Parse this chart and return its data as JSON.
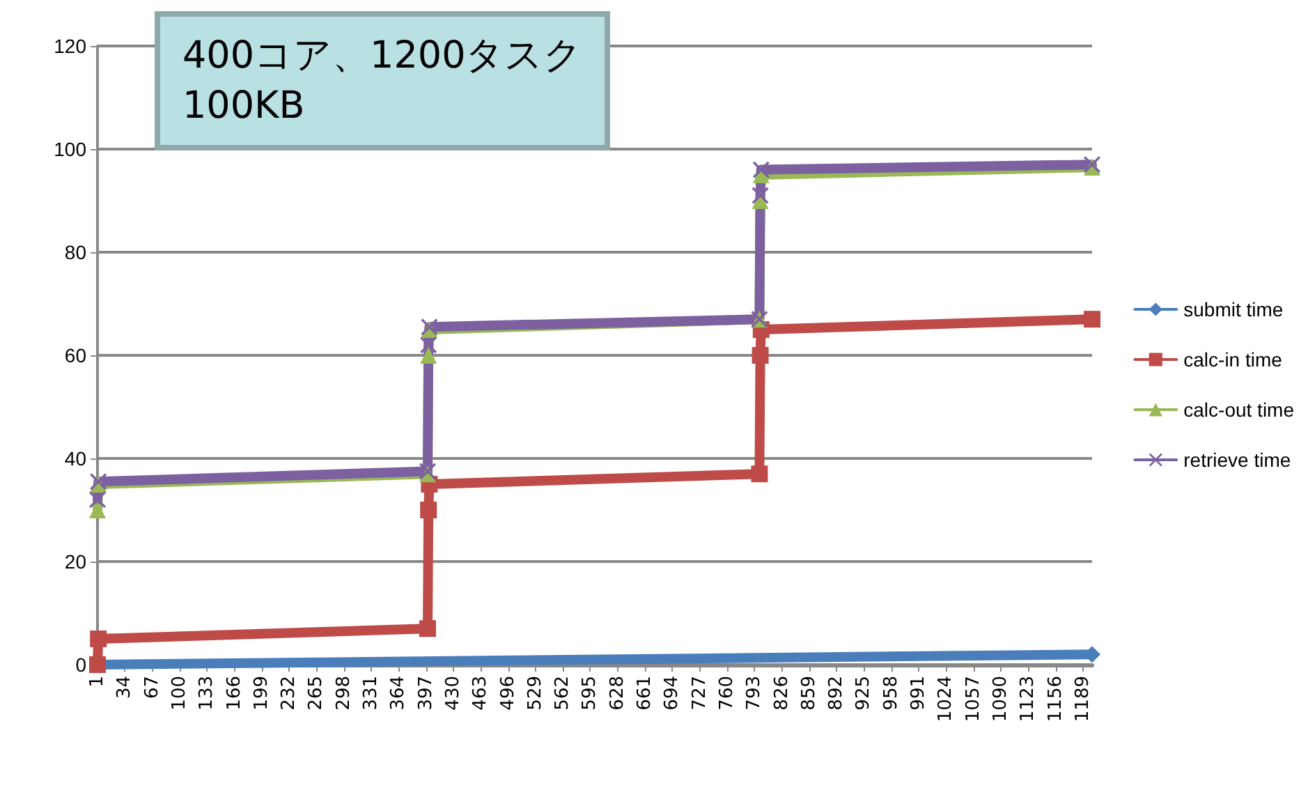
{
  "chart_data": {
    "type": "line",
    "title": "400コア、1200タスク\n100KB",
    "xlim": [
      1,
      1200
    ],
    "xticks": [
      1,
      34,
      67,
      100,
      133,
      166,
      199,
      232,
      265,
      298,
      331,
      364,
      397,
      430,
      463,
      496,
      529,
      562,
      595,
      628,
      661,
      694,
      727,
      760,
      793,
      826,
      859,
      892,
      925,
      958,
      991,
      1024,
      1057,
      1090,
      1123,
      1156,
      1189
    ],
    "ylim": [
      0,
      120
    ],
    "yticks": [
      0,
      20,
      40,
      60,
      80,
      100,
      120
    ],
    "grid": "y",
    "legend": "right",
    "series": [
      {
        "name": "submit time",
        "color": "#4a7ebb",
        "marker": "diamond",
        "x": [
          1,
          1200
        ],
        "values": [
          0,
          2
        ]
      },
      {
        "name": "calc-in time",
        "color": "#be4b48",
        "marker": "square",
        "x": [
          1,
          2,
          399,
          400,
          401,
          799,
          800,
          801,
          1200
        ],
        "values": [
          0,
          5,
          7,
          30,
          35,
          37,
          60,
          65,
          67
        ]
      },
      {
        "name": "calc-out time",
        "color": "#98b954",
        "marker": "triangle",
        "x": [
          1,
          2,
          399,
          400,
          401,
          799,
          800,
          801,
          1200
        ],
        "values": [
          30,
          35,
          37,
          60,
          65,
          67,
          90,
          95,
          96.5
        ]
      },
      {
        "name": "retrieve time",
        "color": "#7d60a0",
        "marker": "cross",
        "x": [
          1,
          2,
          399,
          400,
          401,
          799,
          800,
          801,
          1200
        ],
        "values": [
          32,
          35.5,
          37.5,
          62,
          65.5,
          67,
          91,
          96,
          97
        ]
      }
    ]
  }
}
